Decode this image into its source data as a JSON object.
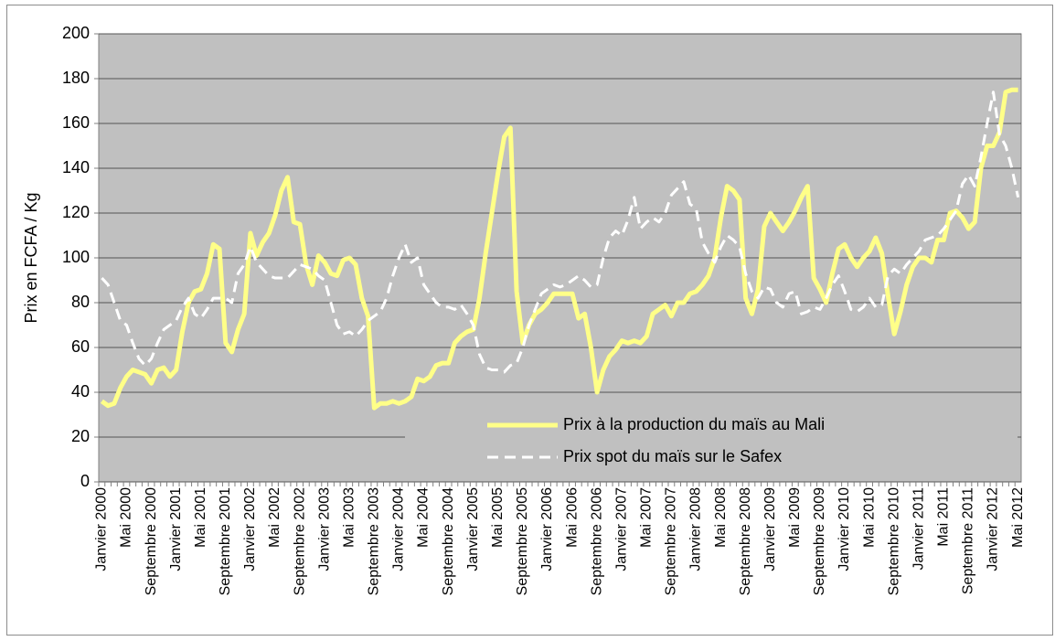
{
  "chart_data": {
    "type": "line",
    "y_label": "Prix en FCFA / Kg",
    "categories": [
      "Janvier 2000",
      null,
      null,
      null,
      "Mai 2000",
      null,
      null,
      null,
      "Septembre 2000",
      null,
      null,
      null,
      "Janvier 2001",
      null,
      null,
      null,
      "Mai 2001",
      null,
      null,
      null,
      "Septembre 2001",
      null,
      null,
      null,
      "Janvier 2002",
      null,
      null,
      null,
      "Mai 2002",
      null,
      null,
      null,
      "Septembre 2002",
      null,
      null,
      null,
      "Janvier 2003",
      null,
      null,
      null,
      "Mai 2003",
      null,
      null,
      null,
      "Septembre 2003",
      null,
      null,
      null,
      "Janvier 2004",
      null,
      null,
      null,
      "Mai 2004",
      null,
      null,
      null,
      "Septembre 2004",
      null,
      null,
      null,
      "Janvier 2005",
      null,
      null,
      null,
      "Mai 2005",
      null,
      null,
      null,
      "Septembre 2005",
      null,
      null,
      null,
      "Janvier 2006",
      null,
      null,
      null,
      "Mai 2006",
      null,
      null,
      null,
      "Septembre 2006",
      null,
      null,
      null,
      "Janvier 2007",
      null,
      null,
      null,
      "Mai 2007",
      null,
      null,
      null,
      "Septembre 2007",
      null,
      null,
      null,
      "Janvier 2008",
      null,
      null,
      null,
      "Mai 2008",
      null,
      null,
      null,
      "Septembre 2008",
      null,
      null,
      null,
      "Janvier 2009",
      null,
      null,
      null,
      "Mai 2009",
      null,
      null,
      null,
      "Septembre 2009",
      null,
      null,
      null,
      "Janvier 2010",
      null,
      null,
      null,
      "Mai 2010",
      null,
      null,
      null,
      "Septembre 2010",
      null,
      null,
      null,
      "Janvier 2011",
      null,
      null,
      null,
      "Mai 2011",
      null,
      null,
      null,
      "Septembre 2011",
      null,
      null,
      null,
      "Janvier 2012",
      null,
      null,
      null,
      "Mai 2012"
    ],
    "series": [
      {
        "name": "Prix à la production du maïs au Mali",
        "color": "#ffff88",
        "dashed": false,
        "values": [
          36,
          34,
          35,
          42,
          47,
          50,
          49,
          48,
          44,
          50,
          51,
          47,
          50,
          67,
          80,
          85,
          86,
          93,
          106,
          104,
          62,
          58,
          68,
          75,
          111,
          101,
          107,
          111,
          119,
          130,
          136,
          116,
          115,
          97,
          88,
          101,
          98,
          93,
          92,
          99,
          100,
          97,
          82,
          74,
          33,
          35,
          35,
          36,
          35,
          36,
          38,
          46,
          45,
          47,
          52,
          53,
          53,
          62,
          65,
          67,
          68,
          82,
          102,
          120,
          138,
          154,
          158,
          85,
          62,
          70,
          75,
          77,
          80,
          84,
          84,
          84,
          84,
          73,
          75,
          60,
          40,
          50,
          56,
          59,
          63,
          62,
          63,
          62,
          65,
          75,
          77,
          79,
          74,
          80,
          80,
          84,
          85,
          88,
          92,
          100,
          118,
          132,
          130,
          126,
          82,
          75,
          86,
          114,
          120,
          116,
          112,
          116,
          121,
          127,
          132,
          91,
          86,
          80,
          93,
          104,
          106,
          100,
          96,
          100,
          103,
          109,
          102,
          83,
          66,
          76,
          88,
          96,
          100,
          100,
          98,
          108,
          108,
          120,
          121,
          118,
          113,
          116,
          140,
          150,
          150,
          156,
          174,
          175,
          175
        ]
      },
      {
        "name": "Prix spot du maïs sur le Safex",
        "color": "#ffffff",
        "dashed": true,
        "values": [
          91,
          88,
          80,
          72,
          70,
          62,
          55,
          52,
          55,
          62,
          68,
          70,
          72,
          78,
          82,
          75,
          73,
          77,
          82,
          82,
          82,
          80,
          93,
          97,
          105,
          98,
          95,
          92,
          91,
          91,
          91,
          94,
          97,
          96,
          95,
          92,
          90,
          80,
          70,
          66,
          67,
          65,
          68,
          72,
          74,
          76,
          82,
          92,
          100,
          106,
          98,
          100,
          88,
          84,
          80,
          78,
          78,
          77,
          79,
          75,
          70,
          57,
          51,
          50,
          50,
          49,
          52,
          53,
          60,
          70,
          77,
          84,
          86,
          88,
          87,
          88,
          90,
          92,
          90,
          87,
          88,
          100,
          109,
          112,
          110,
          117,
          127,
          113,
          116,
          118,
          116,
          120,
          128,
          131,
          134,
          124,
          122,
          107,
          102,
          98,
          105,
          110,
          108,
          105,
          93,
          85,
          82,
          87,
          86,
          80,
          78,
          84,
          85,
          75,
          76,
          78,
          77,
          82,
          88,
          92,
          85,
          77,
          76,
          78,
          82,
          78,
          79,
          92,
          95,
          93,
          97,
          100,
          103,
          108,
          109,
          110,
          113,
          117,
          121,
          133,
          137,
          132,
          145,
          160,
          174,
          155,
          150,
          140,
          127
        ]
      }
    ],
    "ylim": [
      0,
      200
    ],
    "yticks": [
      0,
      20,
      40,
      60,
      80,
      100,
      120,
      140,
      160,
      180,
      200
    ],
    "grid": true,
    "legend": "lower right",
    "plot_background": "#c0c0c0"
  }
}
